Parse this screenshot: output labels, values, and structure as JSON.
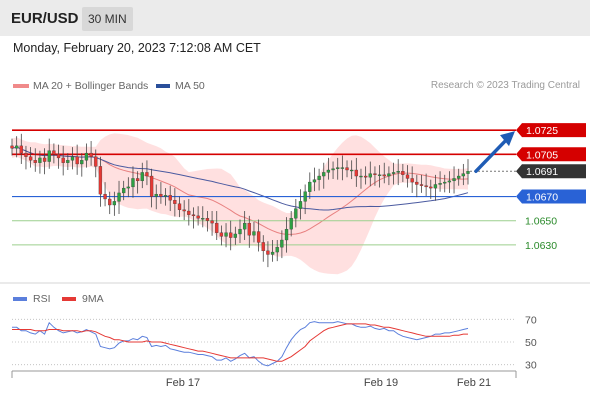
{
  "header": {
    "pair": "EUR/USD",
    "timeframe": "30 MIN"
  },
  "timestamp": "Monday, February 20, 2023 7:12:08 AM CET",
  "legend": {
    "ma_bb": "MA 20 + Bollinger Bands",
    "ma50": "MA 50",
    "credit": "Research © 2023 Trading Central"
  },
  "rsi_legend": {
    "rsi": "RSI",
    "ma9": "9MA"
  },
  "colors": {
    "resistance": "#d50000",
    "current": "#333333",
    "support": "#2962d6",
    "target": "#2a8a2a",
    "up": "#2ea043",
    "down": "#e53935",
    "band": "#ffdada",
    "ma50": "#4a5aa0",
    "ma20": "#e88080",
    "arrow": "#1f5cb5",
    "rsi": "#5b7fdc",
    "rsi_ma": "#e53935"
  },
  "chart_data": [
    {
      "type": "candlestick",
      "ylim": [
        1.0605,
        1.075
      ],
      "levels": [
        {
          "label": "1.0725",
          "value": 1.0725,
          "kind": "resistance"
        },
        {
          "label": "1.0705",
          "value": 1.0705,
          "kind": "resistance"
        },
        {
          "label": "1.0691",
          "value": 1.0691,
          "kind": "current"
        },
        {
          "label": "1.0670",
          "value": 1.067,
          "kind": "support"
        },
        {
          "label": "1.0650",
          "value": 1.065,
          "kind": "target"
        },
        {
          "label": "1.0630",
          "value": 1.063,
          "kind": "target"
        }
      ],
      "xticks": [
        "Feb 17",
        "Feb 19",
        "Feb 21"
      ],
      "close": [
        1.071,
        1.0712,
        1.0706,
        1.0703,
        1.07,
        1.0698,
        1.0702,
        1.0699,
        1.0708,
        1.0705,
        1.0702,
        1.0698,
        1.07,
        1.0703,
        1.0697,
        1.07,
        1.0706,
        1.0703,
        1.0695,
        1.0672,
        1.0668,
        1.0663,
        1.0666,
        1.0673,
        1.0677,
        1.0678,
        1.0685,
        1.0683,
        1.069,
        1.0687,
        1.067,
        1.0672,
        1.067,
        1.0671,
        1.0667,
        1.0664,
        1.0659,
        1.0658,
        1.0655,
        1.0654,
        1.0652,
        1.0652,
        1.065,
        1.0648,
        1.064,
        1.0637,
        1.064,
        1.0636,
        1.0639,
        1.0643,
        1.0648,
        1.0638,
        1.0641,
        1.0632,
        1.0625,
        1.0622,
        1.0624,
        1.0628,
        1.0634,
        1.0643,
        1.0652,
        1.066,
        1.0666,
        1.0674,
        1.0682,
        1.0684,
        1.0687,
        1.069,
        1.0692,
        1.0693,
        1.0694,
        1.0694,
        1.0692,
        1.0692,
        1.0687,
        1.0687,
        1.0686,
        1.0689,
        1.0688,
        1.0688,
        1.0687,
        1.0689,
        1.069,
        1.0691,
        1.0688,
        1.0685,
        1.0682,
        1.068,
        1.0679,
        1.0678,
        1.0677,
        1.068,
        1.0681,
        1.0682,
        1.0683,
        1.0685,
        1.0687,
        1.0689,
        1.0691
      ]
    },
    {
      "type": "line",
      "ylim": [
        20,
        80
      ],
      "yticks": [
        "70",
        "50",
        "30"
      ],
      "series": [
        {
          "name": "RSI",
          "values": [
            63,
            63,
            60,
            60,
            58,
            57,
            60,
            57,
            67,
            63,
            60,
            58,
            59,
            60,
            58,
            59,
            61,
            59,
            57,
            46,
            45,
            44,
            45,
            49,
            51,
            51,
            53,
            52,
            55,
            54,
            46,
            47,
            46,
            47,
            44,
            43,
            42,
            41,
            41,
            40,
            39,
            39,
            38,
            37,
            34,
            34,
            36,
            33,
            35,
            38,
            40,
            36,
            37,
            33,
            30,
            29,
            31,
            33,
            37,
            45,
            52,
            57,
            61,
            63,
            67,
            68,
            67,
            67,
            67,
            67,
            68,
            67,
            66,
            66,
            64,
            63,
            63,
            64,
            62,
            61,
            62,
            60,
            60,
            57,
            55,
            54,
            53,
            52,
            53,
            54,
            55,
            57,
            57,
            58,
            58,
            59,
            60,
            61,
            62
          ]
        },
        {
          "name": "9MA",
          "values": [
            61,
            61,
            61,
            61,
            61,
            60,
            60,
            60,
            61,
            61,
            61,
            60,
            60,
            60,
            60,
            59,
            60,
            60,
            59,
            57,
            55,
            54,
            52,
            52,
            51,
            50,
            50,
            50,
            50,
            51,
            50,
            50,
            50,
            49,
            48,
            47,
            46,
            45,
            44,
            43,
            42,
            42,
            41,
            40,
            39,
            38,
            37,
            36,
            36,
            36,
            36,
            36,
            36,
            36,
            36,
            35,
            34,
            33,
            33,
            35,
            37,
            40,
            43,
            46,
            51,
            54,
            57,
            60,
            62,
            63,
            64,
            65,
            66,
            66,
            66,
            66,
            66,
            65,
            65,
            64,
            63,
            63,
            62,
            61,
            60,
            59,
            58,
            57,
            56,
            55,
            55,
            55,
            55,
            55,
            55,
            56,
            56,
            57,
            57
          ]
        }
      ]
    }
  ]
}
